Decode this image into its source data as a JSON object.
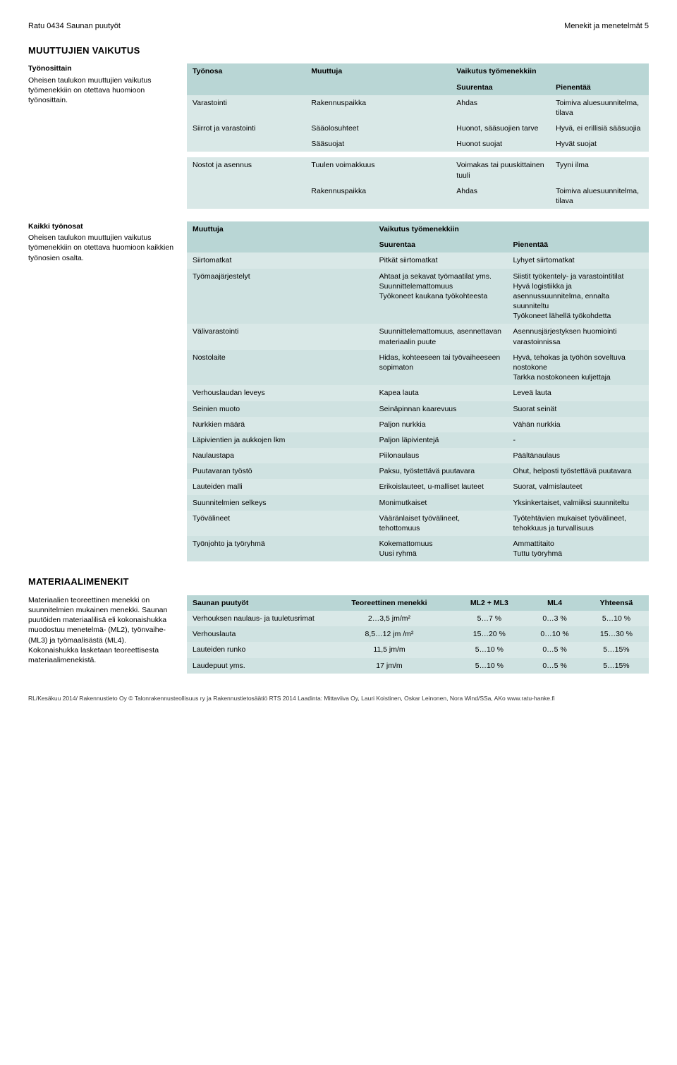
{
  "header": {
    "left": "Ratu 0434 Saunan puutyöt",
    "right": "Menekit ja menetelmät 5"
  },
  "section1": {
    "title": "MUUTTUJIEN VAIKUTUS",
    "left": {
      "subtitle": "Työnosittain",
      "text": "Oheisen taulukon muuttujien vaikutus työmenekkiin on otettava huomioon työnosittain."
    },
    "hdr": [
      "Työnosa",
      "Muuttuja",
      "Vaikutus työmenekkiin",
      ""
    ],
    "sub": [
      "",
      "",
      "Suurentaa",
      "Pienentää"
    ],
    "rows1": [
      [
        "Varastointi",
        "Rakennuspaikka",
        "Ahdas",
        "Toimiva aluesuunnitelma, tilava"
      ],
      [
        "Siirrot ja varastointi",
        "Sääolosuhteet",
        "Huonot, sääsuojien tarve",
        "Hyvä, ei erillisiä sääsuojia"
      ],
      [
        "",
        "Sääsuojat",
        "Huonot suojat",
        "Hyvät suojat"
      ]
    ],
    "rows2": [
      [
        "Nostot ja asennus",
        "Tuulen voimakkuus",
        "Voimakas tai puuskittainen tuuli",
        "Tyyni ilma"
      ],
      [
        "",
        "Rakennuspaikka",
        "Ahdas",
        "Toimiva aluesuunnitelma, tilava"
      ]
    ]
  },
  "section2": {
    "left": {
      "subtitle": "Kaikki työnosat",
      "text": "Oheisen taulukon muuttujien vaikutus työmenekkiin on otettava huomioon kaikkien työnosien osalta."
    },
    "hdr": [
      "Muuttuja",
      "Vaikutus työmenekkiin",
      ""
    ],
    "sub": [
      "",
      "Suurentaa",
      "Pienentää"
    ],
    "rows": [
      [
        "Siirtomatkat",
        "Pitkät siirtomatkat",
        "Lyhyet siirtomatkat"
      ],
      [
        "Työmaajärjestelyt",
        "Ahtaat ja sekavat työmaatilat yms.\nSuunnittelemattomuus\nTyökoneet kaukana työkohteesta",
        "Siistit työkentely- ja varastointitilat\nHyvä logistiikka ja asennussuunnitelma, ennalta suunniteltu\nTyökoneet lähellä työkohdetta"
      ],
      [
        "Välivarastointi",
        "Suunnittelemattomuus, asennettavan materiaalin puute",
        "Asennusjärjestyksen huomiointi varastoinnissa"
      ],
      [
        "Nostolaite",
        "Hidas, kohteeseen tai työvaiheeseen sopimaton",
        "Hyvä, tehokas ja työhön soveltuva nostokone\nTarkka nostokoneen kuljettaja"
      ],
      [
        "Verhouslaudan leveys",
        "Kapea lauta",
        "Leveä lauta"
      ],
      [
        "Seinien muoto",
        "Seinäpinnan kaarevuus",
        "Suorat seinät"
      ],
      [
        "Nurkkien määrä",
        "Paljon nurkkia",
        "Vähän nurkkia"
      ],
      [
        "Läpivientien ja aukkojen lkm",
        "Paljon läpivientejä",
        "-"
      ],
      [
        "Naulaustapa",
        "Piilonaulaus",
        "Päältänaulaus"
      ],
      [
        "Puutavaran työstö",
        "Paksu, työstettävä puutavara",
        "Ohut, helposti työstettävä puutavara"
      ],
      [
        "Lauteiden malli",
        "Erikoislauteet, u-malliset lauteet",
        "Suorat, valmislauteet"
      ],
      [
        "Suunnitelmien selkeys",
        "Monimutkaiset",
        "Yksinkertaiset, valmiiksi suunniteltu"
      ],
      [
        "Työvälineet",
        "Vääränlaiset työvälineet, tehottomuus",
        "Työtehtävien mukaiset työvälineet, tehokkuus ja turvallisuus"
      ],
      [
        "Työnjohto ja työryhmä",
        "Kokemattomuus\nUusi ryhmä",
        "Ammattitaito\nTuttu työryhmä"
      ]
    ]
  },
  "section3": {
    "title": "MATERIAALIMENEKIT",
    "left": "Materiaalien teoreettinen menekki on suunnitelmien mukainen menekki. Saunan puutöiden materiaalilisä eli kokonaishukka muodostuu menetelmä- (ML2), työnvaihe- (ML3) ja työmaalisästä (ML4). Kokonaishukka lasketaan teoreettisesta materiaalimenekistä.",
    "hdr": [
      "Saunan puutyöt",
      "Teoreettinen menekki",
      "ML2 + ML3",
      "ML4",
      "Yhteensä"
    ],
    "rows": [
      [
        "Verhouksen naulaus- ja tuuletusrimat",
        "2…3,5 jm/m²",
        "5…7 %",
        "0…3 %",
        "5…10 %"
      ],
      [
        "Verhouslauta",
        "8,5…12 jm /m²",
        "15…20 %",
        "0…10 %",
        "15…30 %"
      ],
      [
        "Lauteiden runko",
        "11,5 jm/m",
        "5…10 %",
        "0…5 %",
        "5…15%"
      ],
      [
        "Laudepuut yms.",
        "17 jm/m",
        "5…10 %",
        "0…5 %",
        "5…15%"
      ]
    ]
  },
  "footer": "RL/Kesäkuu 2014/ Rakennustieto Oy © Talonrakennusteollisuus ry ja Rakennustietosäätiö RTS 2014   Laadinta: Mittaviiva Oy, Lauri Koistinen, Oskar Leinonen, Nora Wind/SSa, AKo   www.ratu-hanke.fi"
}
